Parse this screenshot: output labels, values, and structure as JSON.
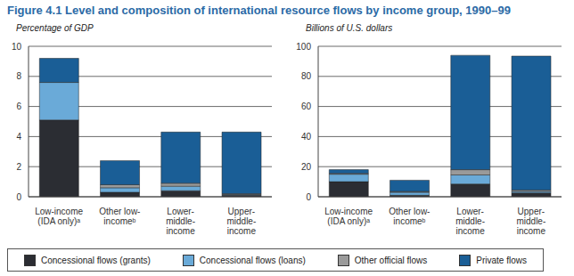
{
  "title": "Figure 4.1  Level and composition of international resource flows by income group, 1990–99",
  "chart_data": [
    {
      "type": "bar",
      "stacked": true,
      "grid": true,
      "legend": "bottom",
      "y_label": "Percentage of GDP",
      "categories": [
        "Low-income (IDA only)ᵃ",
        "Other low-incomeᵇ",
        "Lower-middle-income",
        "Upper-middle-income"
      ],
      "ylim": [
        0,
        10
      ],
      "yticks": [
        0,
        2,
        4,
        6,
        8,
        10
      ],
      "series": [
        {
          "name": "Concessional flows (grants)",
          "color": "#2b2d33",
          "values": [
            5.1,
            0.3,
            0.4,
            0.1
          ]
        },
        {
          "name": "Concessional flows (loans)",
          "color": "#6aaad8",
          "values": [
            2.5,
            0.3,
            0.3,
            0.05
          ]
        },
        {
          "name": "Other official flows",
          "color": "#9a9a9a",
          "values": [
            0,
            0.2,
            0.2,
            0.05
          ]
        },
        {
          "name": "Private flows",
          "color": "#1a5e96",
          "values": [
            1.6,
            1.6,
            3.4,
            4.1
          ]
        }
      ]
    },
    {
      "type": "bar",
      "stacked": true,
      "grid": true,
      "legend": "bottom",
      "y_label": "Billions of U.S. dollars",
      "categories": [
        "Low-income (IDA only)ᵃ",
        "Other low-incomeᵇ",
        "Lower-middle-income",
        "Upper-middle-income"
      ],
      "ylim": [
        0,
        100
      ],
      "yticks": [
        0,
        20,
        40,
        60,
        80,
        100
      ],
      "series": [
        {
          "name": "Concessional flows (grants)",
          "color": "#2b2d33",
          "values": [
            10,
            1,
            8.5,
            2.5
          ]
        },
        {
          "name": "Concessional flows (loans)",
          "color": "#6aaad8",
          "values": [
            5,
            2,
            6,
            1
          ]
        },
        {
          "name": "Other official flows",
          "color": "#9a9a9a",
          "values": [
            0.5,
            0.5,
            3.5,
            1
          ]
        },
        {
          "name": "Private flows",
          "color": "#1a5e96",
          "values": [
            2.5,
            7.5,
            76,
            89
          ]
        }
      ]
    }
  ]
}
